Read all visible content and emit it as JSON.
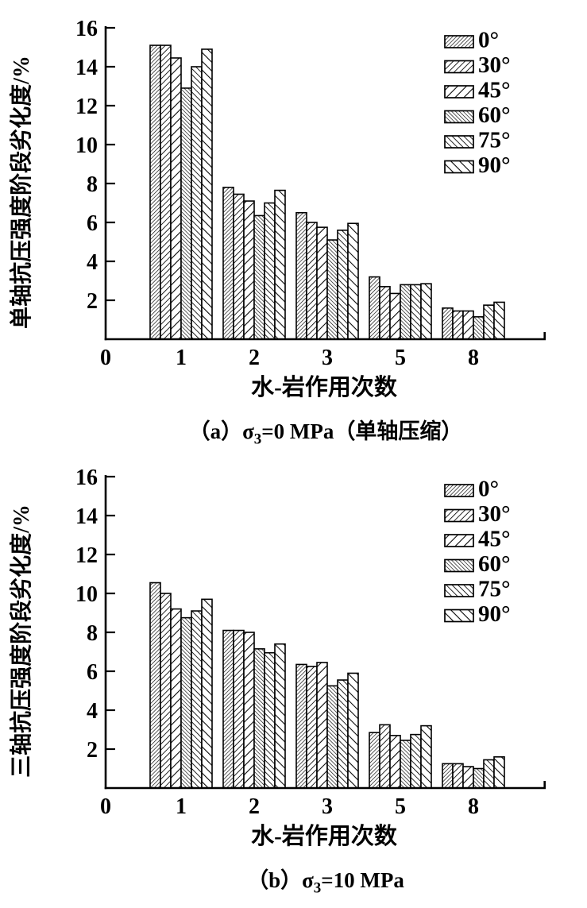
{
  "colors": {
    "ink": "#000000",
    "background": "#ffffff"
  },
  "chart_data": [
    {
      "id": "a",
      "type": "bar",
      "caption": {
        "prefix": "（a）",
        "sigma": "σ",
        "sigma_sub": "3",
        "suffix": "=0 MPa（单轴压缩）"
      },
      "ylabel": "单轴抗压强度阶段劣化度/%",
      "xlabel": "水-岩作用次数",
      "origin_label": "0",
      "categories": [
        "1",
        "2",
        "3",
        "5",
        "8"
      ],
      "ylim": [
        0,
        16
      ],
      "yticks": [
        2,
        4,
        6,
        8,
        10,
        12,
        14,
        16
      ],
      "grid": false,
      "legend_position": "top-right",
      "series": [
        {
          "name": "0°",
          "hatch": "forward-fine",
          "values": [
            15.1,
            7.8,
            6.5,
            3.2,
            1.6
          ]
        },
        {
          "name": "30°",
          "hatch": "forward-medium",
          "values": [
            15.1,
            7.45,
            6.0,
            2.7,
            1.45
          ]
        },
        {
          "name": "45°",
          "hatch": "forward-coarse",
          "values": [
            14.45,
            7.1,
            5.75,
            2.35,
            1.45
          ]
        },
        {
          "name": "60°",
          "hatch": "backward-fine",
          "values": [
            12.9,
            6.35,
            5.1,
            2.8,
            1.15
          ]
        },
        {
          "name": "75°",
          "hatch": "backward-medium",
          "values": [
            14.0,
            7.0,
            5.6,
            2.8,
            1.75
          ]
        },
        {
          "name": "90°",
          "hatch": "backward-coarse",
          "values": [
            14.9,
            7.65,
            5.95,
            2.85,
            1.9
          ]
        }
      ]
    },
    {
      "id": "b",
      "type": "bar",
      "caption": {
        "prefix": "（b）",
        "sigma": "σ",
        "sigma_sub": "3",
        "suffix": "=10 MPa"
      },
      "ylabel": "三轴抗压强度阶段劣化度/%",
      "xlabel": "水-岩作用次数",
      "origin_label": "0",
      "categories": [
        "1",
        "2",
        "3",
        "5",
        "8"
      ],
      "ylim": [
        0,
        16
      ],
      "yticks": [
        2,
        4,
        6,
        8,
        10,
        12,
        14,
        16
      ],
      "grid": false,
      "legend_position": "top-right",
      "series": [
        {
          "name": "0°",
          "hatch": "forward-fine",
          "values": [
            10.55,
            8.1,
            6.35,
            2.85,
            1.25
          ]
        },
        {
          "name": "30°",
          "hatch": "forward-medium",
          "values": [
            10.0,
            8.1,
            6.25,
            3.25,
            1.25
          ]
        },
        {
          "name": "45°",
          "hatch": "forward-coarse",
          "values": [
            9.2,
            8.0,
            6.45,
            2.7,
            1.1
          ]
        },
        {
          "name": "60°",
          "hatch": "backward-fine",
          "values": [
            8.75,
            7.15,
            5.25,
            2.45,
            1.0
          ]
        },
        {
          "name": "75°",
          "hatch": "backward-medium",
          "values": [
            9.1,
            6.95,
            5.55,
            2.75,
            1.45
          ]
        },
        {
          "name": "90°",
          "hatch": "backward-coarse",
          "values": [
            9.7,
            7.4,
            5.9,
            3.2,
            1.6
          ]
        }
      ]
    }
  ]
}
